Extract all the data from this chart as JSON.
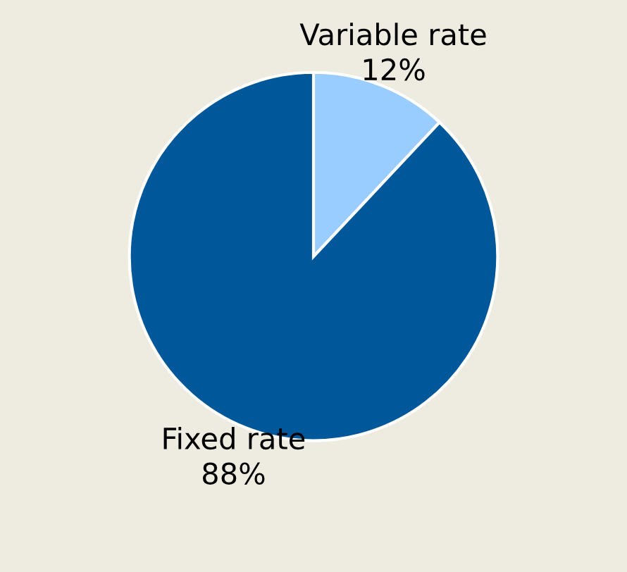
{
  "chart_data": {
    "type": "pie",
    "categories": [
      "Variable rate",
      "Fixed rate"
    ],
    "values": [
      12,
      88
    ],
    "colors": [
      "#99ccff",
      "#00579a"
    ],
    "value_labels": [
      "12%",
      "88%"
    ]
  }
}
